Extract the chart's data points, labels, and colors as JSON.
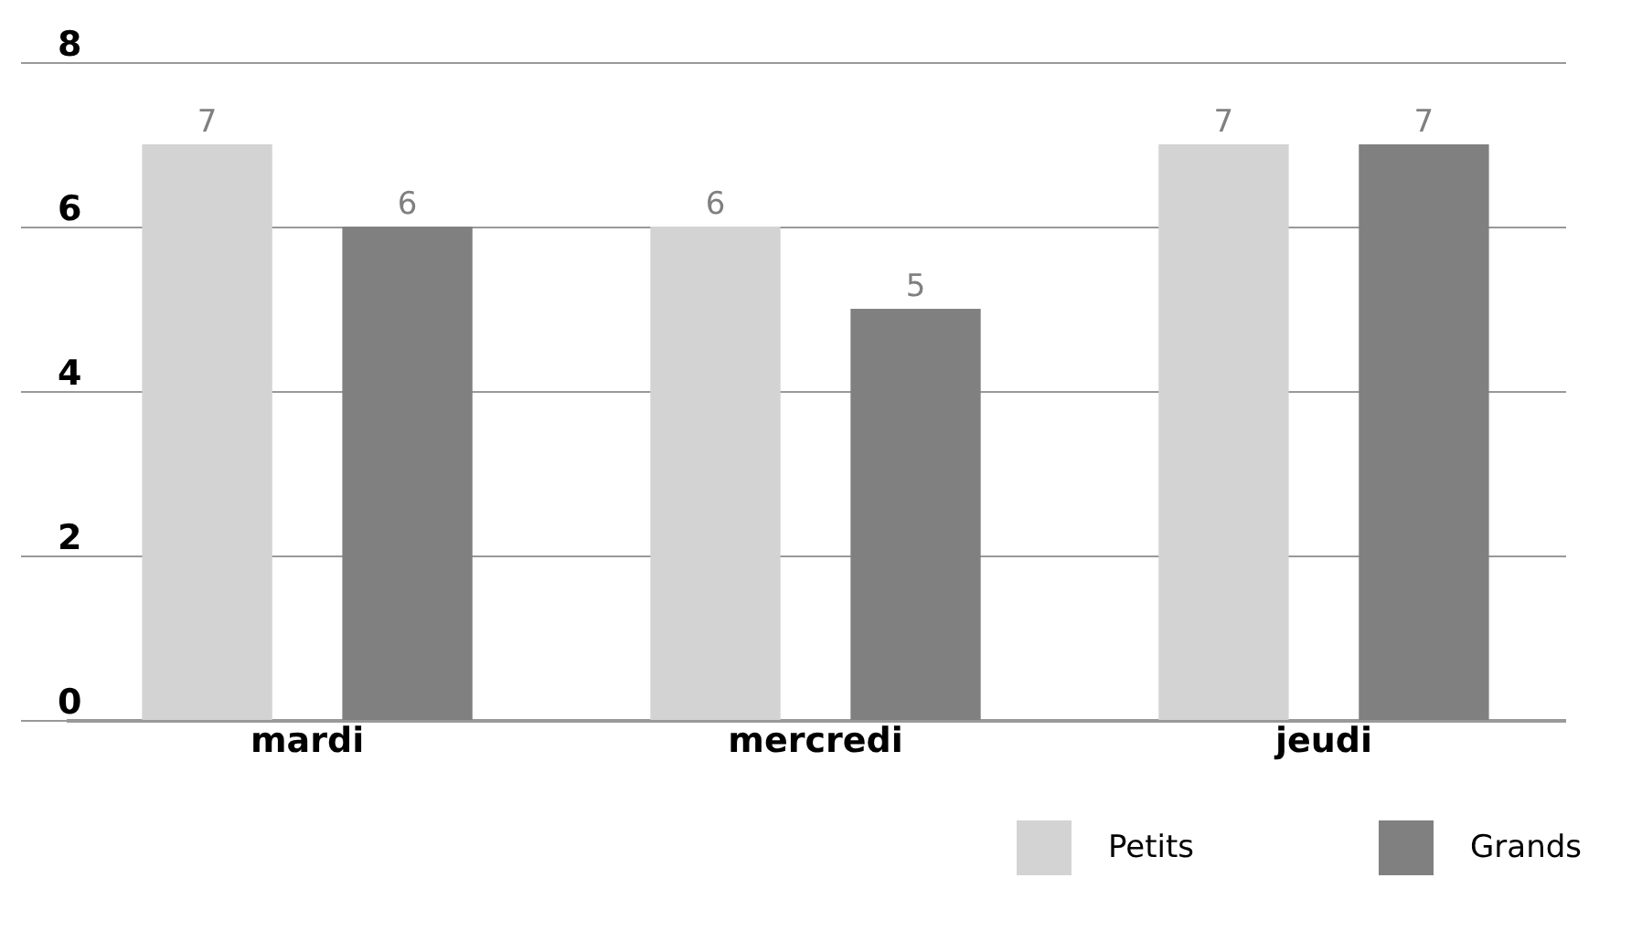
{
  "chart_data": {
    "type": "bar",
    "categories": [
      "mardi",
      "mercredi",
      "jeudi"
    ],
    "series": [
      {
        "name": "Petits",
        "color": "#d3d3d3",
        "values": [
          7,
          6,
          7
        ]
      },
      {
        "name": "Grands",
        "color": "#808080",
        "values": [
          6,
          5,
          7
        ]
      }
    ],
    "ylim": [
      0,
      8
    ],
    "yticks": [
      0,
      2,
      4,
      6,
      8
    ],
    "grid": "y",
    "legend": "bottom right",
    "data_labels": true
  }
}
